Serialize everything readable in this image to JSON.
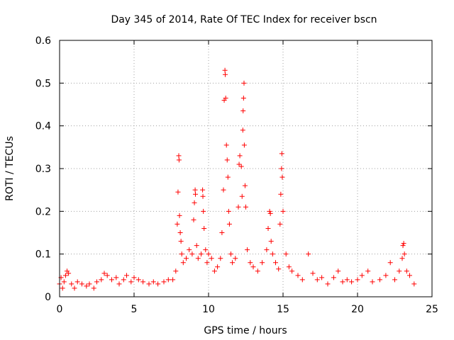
{
  "chart_data": {
    "type": "scatter",
    "title": "Day 345 of 2014, Rate Of TEC Index for receiver bscn",
    "xlabel": "GPS time / hours",
    "ylabel": "ROTI / TECUs",
    "xlim": [
      0,
      25
    ],
    "ylim": [
      0,
      0.6
    ],
    "xticks": [
      0,
      5,
      10,
      15,
      20,
      25
    ],
    "yticks": [
      0,
      0.1,
      0.2,
      0.3,
      0.4,
      0.5,
      0.6
    ],
    "xtick_labels": [
      "0",
      "5",
      "10",
      "15",
      "20",
      "25"
    ],
    "ytick_labels": [
      "0",
      "0.1",
      "0.2",
      "0.3",
      "0.4",
      "0.5",
      "0.6"
    ],
    "grid": true,
    "marker": "plus",
    "marker_color": "#ff0000",
    "series": [
      {
        "points": [
          [
            0.0,
            0.03
          ],
          [
            0.1,
            0.045
          ],
          [
            0.2,
            0.02
          ],
          [
            0.3,
            0.035
          ],
          [
            0.4,
            0.05
          ],
          [
            0.5,
            0.06
          ],
          [
            0.6,
            0.055
          ],
          [
            0.8,
            0.03
          ],
          [
            1.0,
            0.02
          ],
          [
            1.2,
            0.035
          ],
          [
            1.5,
            0.03
          ],
          [
            1.8,
            0.025
          ],
          [
            2.0,
            0.03
          ],
          [
            2.3,
            0.02
          ],
          [
            2.5,
            0.035
          ],
          [
            2.8,
            0.04
          ],
          [
            3.0,
            0.055
          ],
          [
            3.2,
            0.05
          ],
          [
            3.5,
            0.04
          ],
          [
            3.8,
            0.045
          ],
          [
            4.0,
            0.03
          ],
          [
            4.3,
            0.04
          ],
          [
            4.5,
            0.05
          ],
          [
            4.8,
            0.035
          ],
          [
            5.0,
            0.045
          ],
          [
            5.3,
            0.04
          ],
          [
            5.6,
            0.035
          ],
          [
            6.0,
            0.03
          ],
          [
            6.3,
            0.035
          ],
          [
            6.6,
            0.03
          ],
          [
            7.0,
            0.035
          ],
          [
            7.3,
            0.04
          ],
          [
            7.6,
            0.04
          ],
          [
            7.8,
            0.06
          ],
          [
            7.9,
            0.17
          ],
          [
            7.95,
            0.245
          ],
          [
            8.0,
            0.33
          ],
          [
            8.02,
            0.32
          ],
          [
            8.05,
            0.19
          ],
          [
            8.1,
            0.15
          ],
          [
            8.15,
            0.13
          ],
          [
            8.2,
            0.1
          ],
          [
            8.3,
            0.08
          ],
          [
            8.5,
            0.09
          ],
          [
            8.7,
            0.11
          ],
          [
            8.9,
            0.1
          ],
          [
            9.0,
            0.18
          ],
          [
            9.05,
            0.22
          ],
          [
            9.1,
            0.25
          ],
          [
            9.12,
            0.24
          ],
          [
            9.2,
            0.12
          ],
          [
            9.3,
            0.09
          ],
          [
            9.5,
            0.1
          ],
          [
            9.6,
            0.25
          ],
          [
            9.62,
            0.235
          ],
          [
            9.65,
            0.2
          ],
          [
            9.7,
            0.16
          ],
          [
            9.8,
            0.11
          ],
          [
            9.9,
            0.08
          ],
          [
            10.0,
            0.1
          ],
          [
            10.2,
            0.09
          ],
          [
            10.4,
            0.06
          ],
          [
            10.6,
            0.07
          ],
          [
            10.8,
            0.09
          ],
          [
            10.9,
            0.15
          ],
          [
            11.0,
            0.25
          ],
          [
            11.05,
            0.46
          ],
          [
            11.1,
            0.53
          ],
          [
            11.12,
            0.52
          ],
          [
            11.15,
            0.465
          ],
          [
            11.2,
            0.355
          ],
          [
            11.25,
            0.32
          ],
          [
            11.3,
            0.28
          ],
          [
            11.35,
            0.2
          ],
          [
            11.4,
            0.17
          ],
          [
            11.5,
            0.1
          ],
          [
            11.6,
            0.08
          ],
          [
            11.8,
            0.09
          ],
          [
            12.0,
            0.21
          ],
          [
            12.05,
            0.31
          ],
          [
            12.1,
            0.33
          ],
          [
            12.2,
            0.305
          ],
          [
            12.25,
            0.235
          ],
          [
            12.3,
            0.39
          ],
          [
            12.32,
            0.435
          ],
          [
            12.35,
            0.465
          ],
          [
            12.38,
            0.5
          ],
          [
            12.4,
            0.355
          ],
          [
            12.45,
            0.26
          ],
          [
            12.5,
            0.21
          ],
          [
            12.6,
            0.11
          ],
          [
            12.8,
            0.08
          ],
          [
            13.0,
            0.07
          ],
          [
            13.3,
            0.06
          ],
          [
            13.6,
            0.08
          ],
          [
            13.9,
            0.11
          ],
          [
            14.0,
            0.16
          ],
          [
            14.1,
            0.2
          ],
          [
            14.15,
            0.195
          ],
          [
            14.2,
            0.13
          ],
          [
            14.3,
            0.1
          ],
          [
            14.5,
            0.08
          ],
          [
            14.7,
            0.065
          ],
          [
            14.8,
            0.17
          ],
          [
            14.85,
            0.24
          ],
          [
            14.9,
            0.3
          ],
          [
            14.92,
            0.335
          ],
          [
            14.95,
            0.28
          ],
          [
            15.0,
            0.2
          ],
          [
            15.2,
            0.1
          ],
          [
            15.4,
            0.07
          ],
          [
            15.6,
            0.06
          ],
          [
            16.0,
            0.05
          ],
          [
            16.3,
            0.04
          ],
          [
            16.7,
            0.1
          ],
          [
            17.0,
            0.055
          ],
          [
            17.3,
            0.04
          ],
          [
            17.6,
            0.045
          ],
          [
            18.0,
            0.03
          ],
          [
            18.4,
            0.045
          ],
          [
            18.7,
            0.06
          ],
          [
            19.0,
            0.035
          ],
          [
            19.3,
            0.04
          ],
          [
            19.6,
            0.035
          ],
          [
            20.0,
            0.04
          ],
          [
            20.3,
            0.05
          ],
          [
            20.7,
            0.06
          ],
          [
            21.0,
            0.035
          ],
          [
            21.5,
            0.04
          ],
          [
            21.9,
            0.05
          ],
          [
            22.2,
            0.08
          ],
          [
            22.5,
            0.04
          ],
          [
            22.8,
            0.06
          ],
          [
            23.0,
            0.09
          ],
          [
            23.05,
            0.12
          ],
          [
            23.1,
            0.125
          ],
          [
            23.15,
            0.1
          ],
          [
            23.3,
            0.06
          ],
          [
            23.5,
            0.05
          ],
          [
            23.8,
            0.03
          ]
        ]
      }
    ]
  }
}
